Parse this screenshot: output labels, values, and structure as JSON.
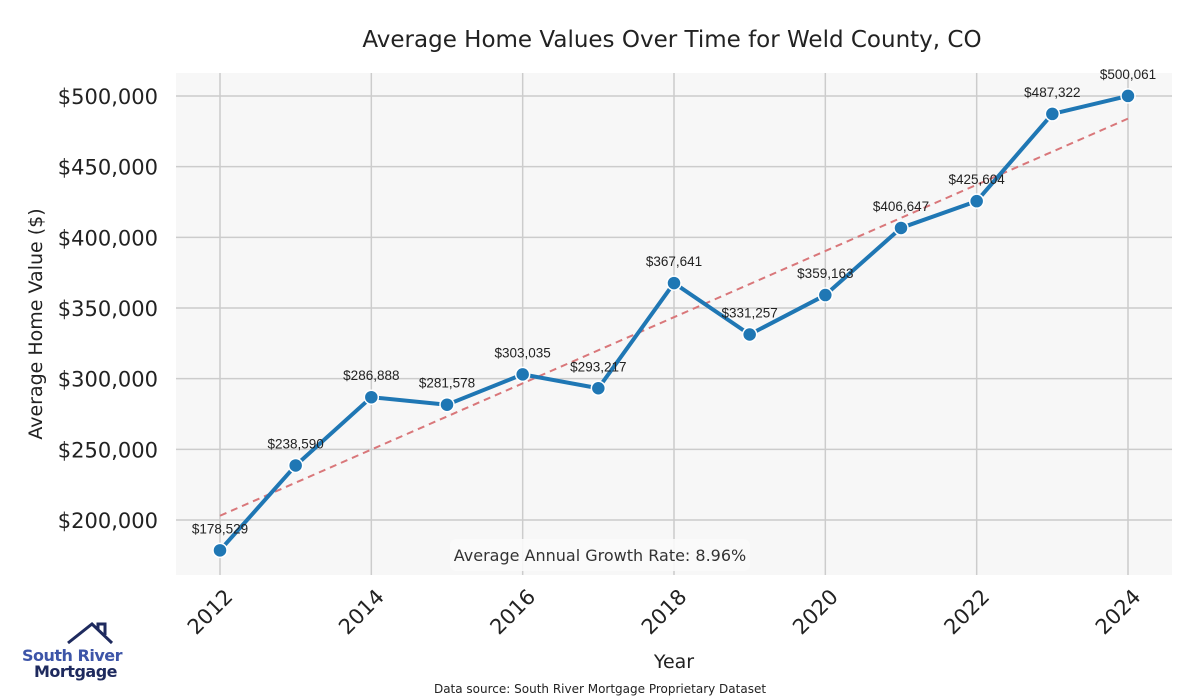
{
  "chart_data": {
    "type": "line",
    "title": "Average Home Values Over Time for Weld County, CO",
    "xlabel": "Year",
    "ylabel": "Average Home Value ($)",
    "x": [
      2012,
      2013,
      2014,
      2015,
      2016,
      2017,
      2018,
      2019,
      2020,
      2021,
      2022,
      2023,
      2024
    ],
    "series": [
      {
        "name": "Average Home Value",
        "color": "#1f77b4",
        "values": [
          178529,
          238590,
          286888,
          281578,
          303035,
          293217,
          367641,
          331257,
          359163,
          406647,
          425604,
          487322,
          500061
        ],
        "labels": [
          "$178,529",
          "$238,590",
          "$286,888",
          "$281,578",
          "$303,035",
          "$293,217",
          "$367,641",
          "$331,257",
          "$359,163",
          "$406,647",
          "$425,604",
          "$487,322",
          "$500,061"
        ]
      },
      {
        "name": "Trend",
        "color": "#d9777a",
        "style": "dashed",
        "x": [
          2012,
          2024
        ],
        "values": [
          203000,
          484000
        ]
      }
    ],
    "xticks": [
      "2012",
      "2014",
      "2016",
      "2018",
      "2020",
      "2022",
      "2024"
    ],
    "yticks": [
      "$200,000",
      "$250,000",
      "$300,000",
      "$350,000",
      "$400,000",
      "$450,000",
      "$500,000"
    ],
    "ytick_values": [
      200000,
      250000,
      300000,
      350000,
      400000,
      450000,
      500000
    ],
    "xlim": [
      2011.4,
      2024.6
    ],
    "ylim": [
      162000,
      517000
    ],
    "grid": true,
    "annotation": "Average Annual Growth Rate: 8.96%",
    "footnote": "Data source: South River Mortgage Proprietary Dataset"
  },
  "logo": {
    "line1": "South River",
    "line2": "Mortgage"
  }
}
